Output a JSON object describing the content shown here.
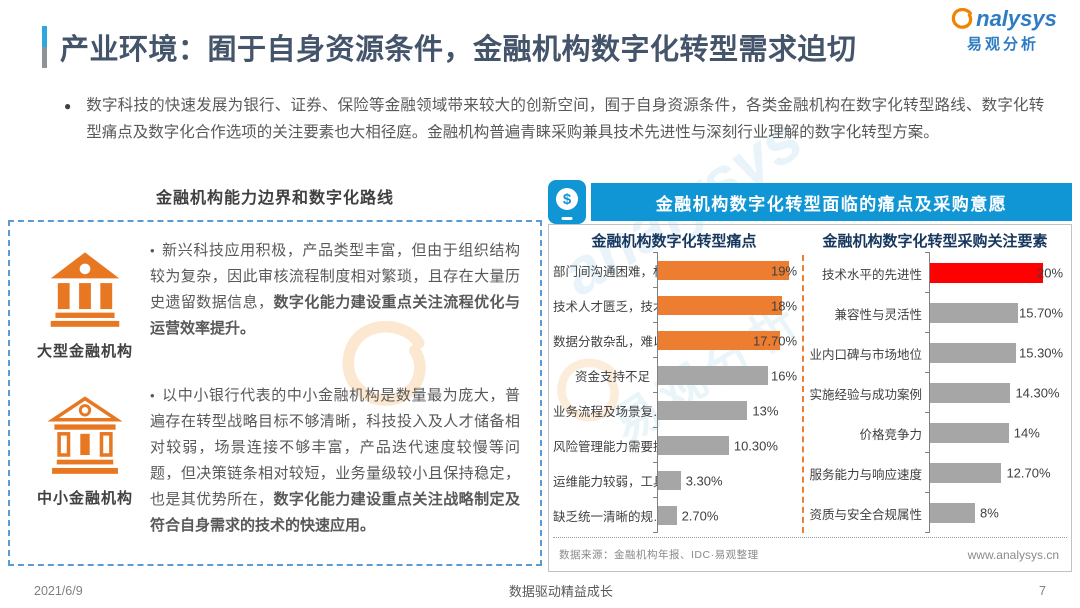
{
  "header": {
    "title": "产业环境：囿于自身资源条件，金融机构数字化转型需求迫切",
    "logo": {
      "brand_en": "nalysys",
      "brand_cn": "易观分析"
    }
  },
  "intro": {
    "bullet": "●",
    "text": "数字科技的快速发展为银行、证券、保险等金融领域带来较大的创新空间，囿于自身资源条件，各类金融机构在数字化转型路线、数字化转型痛点及数字化合作选项的关注要素也大相径庭。金融机构普遍青睐采购兼具技术先进性与深刻行业理解的数字化转型方案。"
  },
  "left_panel": {
    "title": "金融机构能力边界和数字化路线",
    "items": [
      {
        "icon": "bank-solid-icon",
        "label": "大型金融机构",
        "bullet": "•",
        "text_normal": "新兴科技应用积极，产品类型丰富，但由于组织结构较为复杂，因此审核流程制度相对繁琐，且存在大量历史遗留数据信息，",
        "text_bold": "数字化能力建设重点关注流程优化与运营效率提升。"
      },
      {
        "icon": "bank-outline-icon",
        "label": "中小金融机构",
        "bullet": "•",
        "text_normal": "以中小银行代表的中小金融机构是数量最为庞大，普遍存在转型战略目标不够清晰，科技投入及人才储备相对较弱，场景连接不够丰富，产品迭代速度较慢等问题，但决策链条相对较短，业务量级较小且保持稳定，也是其优势所在，",
        "text_bold": "数字化能力建设重点关注战略制定及符合自身需求的技术的快速应用。"
      }
    ]
  },
  "right_panel": {
    "banner": "金融机构数字化转型面临的痛点及采购意愿",
    "banner_icon": "mobile-payment-icon",
    "source": "数据来源：金融机构年报、IDC·易观整理",
    "website": "www.analysys.cn"
  },
  "chart_data": [
    {
      "type": "bar",
      "orientation": "horizontal",
      "title": "金融机构数字化转型痛点",
      "categories": [
        "部门间沟通困难，权…",
        "技术人才匮乏，技术…",
        "数据分散杂乱，难以…",
        "资金支持不足",
        "业务流程及场景复…",
        "风险管理能力需要提高",
        "运维能力较弱，工具…",
        "缺乏统一清晰的规…"
      ],
      "values": [
        19,
        18,
        17.7,
        16,
        13,
        10.3,
        3.3,
        2.7
      ],
      "labels": [
        "19%",
        "18%",
        "17.70%",
        "16%",
        "13%",
        "10.30%",
        "3.30%",
        "2.70%"
      ],
      "colors": [
        "#ed7d31",
        "#ed7d31",
        "#ed7d31",
        "#a6a6a6",
        "#a6a6a6",
        "#a6a6a6",
        "#a6a6a6",
        "#a6a6a6"
      ],
      "xlim": [
        0,
        20.5
      ],
      "grid": false,
      "legend": "none"
    },
    {
      "type": "bar",
      "orientation": "horizontal",
      "title": "金融机构数字化转型采购关注要素",
      "categories": [
        "技术水平的先进性",
        "兼容性与灵活性",
        "业内口碑与市场地位",
        "实施经验与成功案例",
        "价格竞争力",
        "服务能力与响应速度",
        "资质与安全合规属性"
      ],
      "values": [
        20,
        15.7,
        15.3,
        14.3,
        14,
        12.7,
        8
      ],
      "labels": [
        "20%",
        "15.70%",
        "15.30%",
        "14.30%",
        "14%",
        "12.70%",
        "8%"
      ],
      "colors": [
        "#ff0000",
        "#a6a6a6",
        "#a6a6a6",
        "#a6a6a6",
        "#a6a6a6",
        "#a6a6a6",
        "#a6a6a6"
      ],
      "xlim": [
        0,
        24
      ],
      "grid": false,
      "legend": "none"
    }
  ],
  "footer": {
    "date": "2021/6/9",
    "center": "数据驱动精益成长",
    "page": "7"
  },
  "watermark": {
    "en": "analysys",
    "cn": "易观分析"
  },
  "colors": {
    "banner_blue": "#1095d5",
    "accent_orange": "#ed7d31",
    "highlight_red": "#ff0000",
    "bar_gray": "#a6a6a6",
    "dashed_border_blue": "#5b9bd5",
    "title_navy": "#44546a",
    "chart_title_navy": "#17375e"
  }
}
